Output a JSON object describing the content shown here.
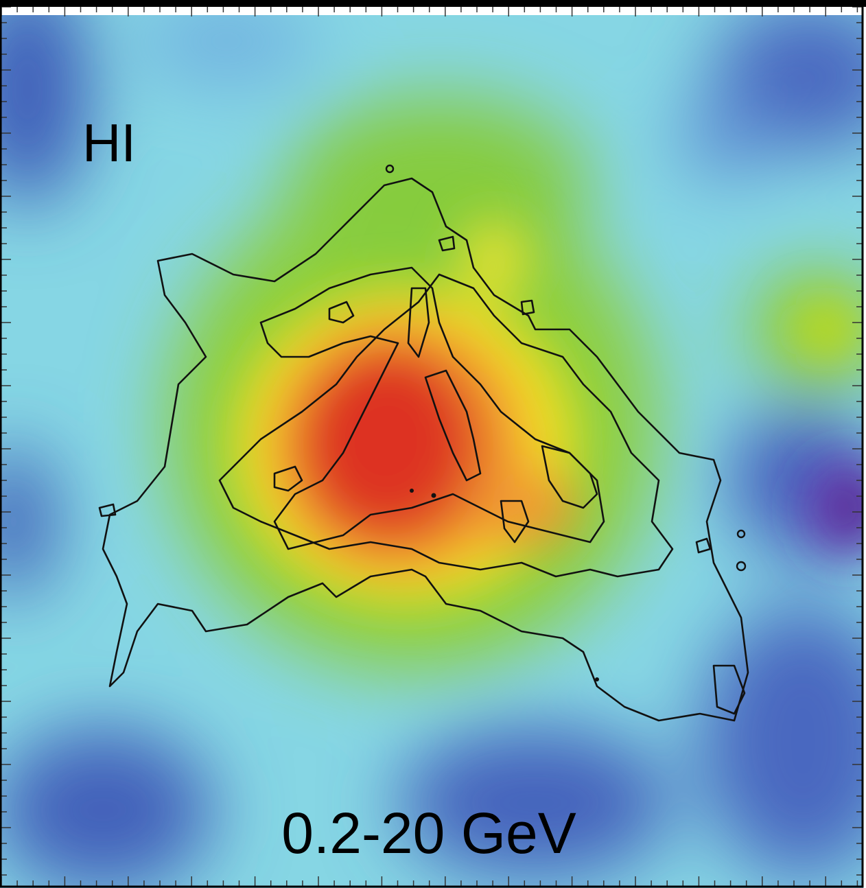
{
  "labels": {
    "tracer": "HI",
    "energy_range": "0.2-20 GeV"
  }
}
